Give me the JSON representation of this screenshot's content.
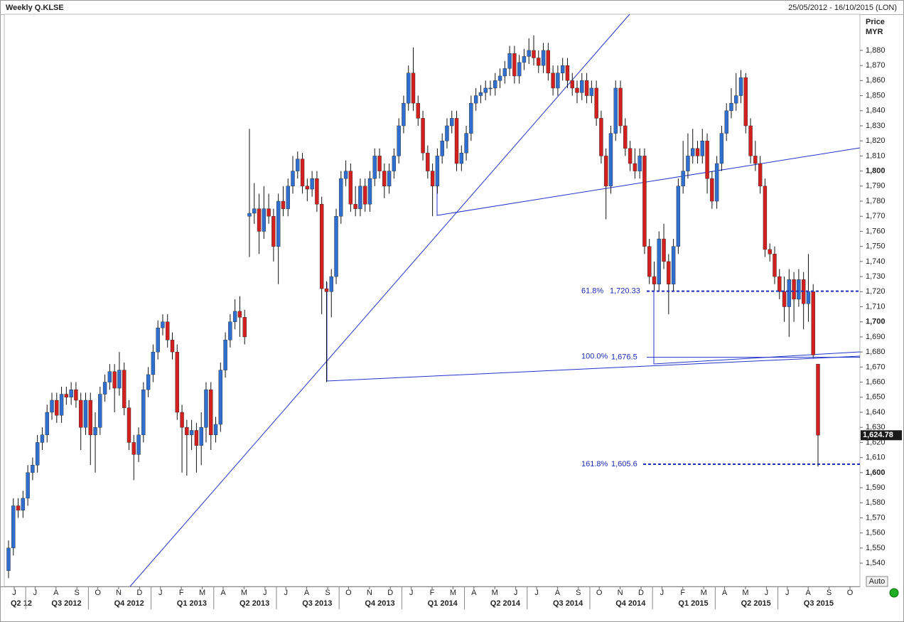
{
  "chart_data": {
    "type": "candlestick",
    "title": "Weekly Q.KLSE",
    "date_range": "25/05/2012 - 16/10/2015 (LON)",
    "y_label": "Price",
    "y_unit": "MYR",
    "button": "Auto",
    "up_color": "#2f6fcf",
    "down_color": "#d41f1f",
    "ylim": [
      1524.5,
      1904
    ],
    "yticks": [
      {
        "value": 1540,
        "label": "1,540"
      },
      {
        "value": 1550,
        "label": "1,550"
      },
      {
        "value": 1560,
        "label": "1,560"
      },
      {
        "value": 1570,
        "label": "1,570"
      },
      {
        "value": 1580,
        "label": "1,580"
      },
      {
        "value": 1590,
        "label": "1,590"
      },
      {
        "value": 1600,
        "label": "1,600"
      },
      {
        "value": 1610,
        "label": "1,610"
      },
      {
        "value": 1620,
        "label": "1,620"
      },
      {
        "value": 1630,
        "label": "1,630"
      },
      {
        "value": 1640,
        "label": "1,640"
      },
      {
        "value": 1650,
        "label": "1,650"
      },
      {
        "value": 1660,
        "label": "1,660"
      },
      {
        "value": 1670,
        "label": "1,670"
      },
      {
        "value": 1680,
        "label": "1,680"
      },
      {
        "value": 1690,
        "label": "1,690"
      },
      {
        "value": 1700,
        "label": "1,700"
      },
      {
        "value": 1710,
        "label": "1,710"
      },
      {
        "value": 1720,
        "label": "1,720"
      },
      {
        "value": 1730,
        "label": "1,730"
      },
      {
        "value": 1740,
        "label": "1,740"
      },
      {
        "value": 1750,
        "label": "1,750"
      },
      {
        "value": 1760,
        "label": "1,760"
      },
      {
        "value": 1770,
        "label": "1,770"
      },
      {
        "value": 1780,
        "label": "1,780"
      },
      {
        "value": 1790,
        "label": "1,790"
      },
      {
        "value": 1800,
        "label": "1,800"
      },
      {
        "value": 1810,
        "label": "1,810"
      },
      {
        "value": 1820,
        "label": "1,820"
      },
      {
        "value": 1830,
        "label": "1,830"
      },
      {
        "value": 1840,
        "label": "1,840"
      },
      {
        "value": 1850,
        "label": "1,850"
      },
      {
        "value": 1860,
        "label": "1,860"
      },
      {
        "value": 1870,
        "label": "1,870"
      },
      {
        "value": 1880,
        "label": "1,880"
      }
    ],
    "months": [
      "J",
      "J",
      "A",
      "S",
      "O",
      "N",
      "D",
      "J",
      "F",
      "M",
      "A",
      "M",
      "J",
      "J",
      "A",
      "S",
      "O",
      "N",
      "D",
      "J",
      "F",
      "M",
      "A",
      "M",
      "J",
      "J",
      "A",
      "S",
      "O",
      "N",
      "D",
      "J",
      "F",
      "M",
      "A",
      "M",
      "J",
      "J",
      "A",
      "S",
      "O"
    ],
    "quarters": [
      "Q2 12",
      "Q3 2012",
      "Q4 2012",
      "Q1 2013",
      "Q2 2013",
      "Q3 2013",
      "Q4 2013",
      "Q1 2014",
      "Q2 2014",
      "Q3 2014",
      "Q4 2014",
      "Q1 2015",
      "Q2 2015",
      "Q3 2015"
    ],
    "open": [
      1535,
      1550,
      1578,
      1575,
      1583,
      1600,
      1605,
      1620,
      1625,
      1640,
      1648,
      1638,
      1652,
      1650,
      1655,
      1648,
      1630,
      1648,
      1625,
      1630,
      1652,
      1660,
      1667,
      1656,
      1668,
      1643,
      1620,
      1612,
      1625,
      1655,
      1665,
      1680,
      1696,
      1700,
      1688,
      1680,
      1640,
      1630,
      1625,
      1628,
      1618,
      1630,
      1655,
      1625,
      1632,
      1668,
      1688,
      1700,
      1707,
      1703,
      1770,
      1772,
      1775,
      1760,
      1775,
      1770,
      1750,
      1780,
      1775,
      1790,
      1800,
      1808,
      1790,
      1788,
      1795,
      1778,
      1722,
      1720,
      1730,
      1770,
      1795,
      1800,
      1778,
      1775,
      1790,
      1778,
      1795,
      1810,
      1800,
      1790,
      1800,
      1810,
      1830,
      1845,
      1865,
      1845,
      1835,
      1812,
      1800,
      1790,
      1810,
      1820,
      1830,
      1835,
      1805,
      1812,
      1825,
      1845,
      1850,
      1852,
      1855,
      1855,
      1860,
      1863,
      1868,
      1878,
      1863,
      1872,
      1876,
      1880,
      1875,
      1870,
      1880,
      1865,
      1855,
      1865,
      1870,
      1860,
      1855,
      1852,
      1860,
      1850,
      1855,
      1835,
      1810,
      1790,
      1825,
      1855,
      1830,
      1815,
      1805,
      1800,
      1810,
      1750,
      1730,
      1725,
      1755,
      1740,
      1725,
      1750,
      1790,
      1800,
      1810,
      1815,
      1810,
      1820,
      1795,
      1780,
      1805,
      1825,
      1840,
      1845,
      1850,
      1862,
      1830,
      1810,
      1805,
      1790,
      1748,
      1745,
      1730,
      1720,
      1710,
      1728,
      1715,
      1728,
      1712,
      1720,
      1672
    ],
    "high": [
      1555,
      1583,
      1583,
      1588,
      1605,
      1610,
      1625,
      1630,
      1645,
      1653,
      1653,
      1657,
      1657,
      1660,
      1660,
      1653,
      1653,
      1653,
      1640,
      1657,
      1665,
      1672,
      1672,
      1680,
      1673,
      1648,
      1625,
      1630,
      1660,
      1670,
      1685,
      1701,
      1705,
      1705,
      1693,
      1685,
      1645,
      1635,
      1635,
      1633,
      1640,
      1660,
      1660,
      1637,
      1673,
      1693,
      1705,
      1715,
      1717,
      1708,
      1828,
      1792,
      1785,
      1790,
      1785,
      1775,
      1785,
      1790,
      1795,
      1810,
      1813,
      1812,
      1795,
      1800,
      1800,
      1783,
      1727,
      1735,
      1775,
      1800,
      1807,
      1805,
      1790,
      1795,
      1795,
      1800,
      1815,
      1815,
      1805,
      1805,
      1815,
      1835,
      1850,
      1870,
      1882,
      1850,
      1840,
      1817,
      1805,
      1815,
      1825,
      1835,
      1840,
      1840,
      1817,
      1830,
      1850,
      1855,
      1857,
      1860,
      1860,
      1865,
      1868,
      1873,
      1883,
      1883,
      1877,
      1881,
      1888,
      1890,
      1880,
      1885,
      1885,
      1870,
      1870,
      1875,
      1875,
      1865,
      1860,
      1865,
      1865,
      1860,
      1860,
      1840,
      1815,
      1830,
      1860,
      1860,
      1835,
      1820,
      1815,
      1815,
      1815,
      1755,
      1740,
      1760,
      1765,
      1745,
      1755,
      1795,
      1820,
      1825,
      1828,
      1820,
      1828,
      1825,
      1800,
      1810,
      1830,
      1845,
      1855,
      1865,
      1867,
      1865,
      1835,
      1820,
      1810,
      1795,
      1752,
      1750,
      1735,
      1730,
      1735,
      1733,
      1735,
      1733,
      1745,
      1725,
      1672
    ],
    "low": [
      1530,
      1545,
      1570,
      1570,
      1578,
      1595,
      1600,
      1615,
      1620,
      1635,
      1633,
      1633,
      1645,
      1645,
      1643,
      1615,
      1625,
      1605,
      1600,
      1625,
      1647,
      1655,
      1640,
      1651,
      1638,
      1615,
      1595,
      1607,
      1620,
      1650,
      1660,
      1675,
      1691,
      1683,
      1675,
      1635,
      1600,
      1598,
      1615,
      1600,
      1605,
      1620,
      1615,
      1620,
      1627,
      1663,
      1683,
      1695,
      1690,
      1685,
      1743,
      1765,
      1745,
      1755,
      1765,
      1740,
      1725,
      1770,
      1770,
      1785,
      1795,
      1785,
      1780,
      1783,
      1773,
      1705,
      1660,
      1703,
      1725,
      1765,
      1790,
      1773,
      1770,
      1770,
      1773,
      1773,
      1790,
      1795,
      1782,
      1785,
      1795,
      1805,
      1825,
      1840,
      1840,
      1830,
      1807,
      1795,
      1770,
      1785,
      1805,
      1815,
      1825,
      1800,
      1800,
      1807,
      1820,
      1840,
      1845,
      1847,
      1850,
      1850,
      1855,
      1858,
      1863,
      1858,
      1858,
      1867,
      1871,
      1870,
      1865,
      1865,
      1860,
      1850,
      1850,
      1860,
      1855,
      1850,
      1845,
      1847,
      1845,
      1845,
      1830,
      1805,
      1768,
      1785,
      1820,
      1825,
      1810,
      1800,
      1795,
      1795,
      1745,
      1725,
      1720,
      1720,
      1735,
      1705,
      1720,
      1745,
      1785,
      1795,
      1805,
      1805,
      1805,
      1785,
      1775,
      1775,
      1800,
      1820,
      1835,
      1840,
      1845,
      1825,
      1805,
      1800,
      1785,
      1743,
      1740,
      1725,
      1715,
      1700,
      1690,
      1700,
      1710,
      1695,
      1700,
      1676,
      1604
    ],
    "close": [
      1550,
      1578,
      1575,
      1583,
      1600,
      1605,
      1620,
      1625,
      1640,
      1648,
      1638,
      1652,
      1650,
      1655,
      1648,
      1630,
      1648,
      1625,
      1630,
      1652,
      1660,
      1667,
      1656,
      1668,
      1643,
      1620,
      1612,
      1625,
      1655,
      1665,
      1680,
      1696,
      1700,
      1688,
      1680,
      1640,
      1630,
      1625,
      1628,
      1618,
      1630,
      1655,
      1625,
      1632,
      1668,
      1688,
      1700,
      1707,
      1703,
      1690,
      1772,
      1775,
      1760,
      1775,
      1770,
      1750,
      1780,
      1775,
      1790,
      1800,
      1808,
      1790,
      1788,
      1795,
      1778,
      1722,
      1720,
      1730,
      1770,
      1795,
      1800,
      1778,
      1775,
      1790,
      1778,
      1795,
      1810,
      1800,
      1790,
      1800,
      1810,
      1830,
      1845,
      1865,
      1845,
      1835,
      1812,
      1800,
      1790,
      1810,
      1820,
      1830,
      1835,
      1805,
      1812,
      1825,
      1845,
      1850,
      1852,
      1855,
      1855,
      1860,
      1863,
      1868,
      1878,
      1863,
      1872,
      1876,
      1880,
      1875,
      1870,
      1880,
      1865,
      1855,
      1865,
      1870,
      1860,
      1855,
      1852,
      1860,
      1850,
      1855,
      1835,
      1810,
      1790,
      1825,
      1855,
      1830,
      1815,
      1805,
      1800,
      1810,
      1750,
      1730,
      1725,
      1755,
      1740,
      1725,
      1750,
      1790,
      1800,
      1810,
      1815,
      1810,
      1820,
      1795,
      1780,
      1805,
      1825,
      1840,
      1845,
      1850,
      1862,
      1830,
      1810,
      1805,
      1790,
      1748,
      1745,
      1730,
      1720,
      1710,
      1728,
      1715,
      1728,
      1712,
      1720,
      1678,
      1624.78
    ],
    "last_price": {
      "value": 1624.78,
      "label": "1,624.78"
    },
    "fib_levels": [
      {
        "label": "61.8%",
        "value": 1720.33,
        "value_label": "1,720.33",
        "line": "dashed"
      },
      {
        "label": "100.0%",
        "value": 1676.5,
        "value_label": "1,676.5",
        "line": "solid"
      },
      {
        "label": "161.8%",
        "value": 1605.6,
        "value_label": "1,605.6",
        "line": "dashed"
      }
    ]
  }
}
